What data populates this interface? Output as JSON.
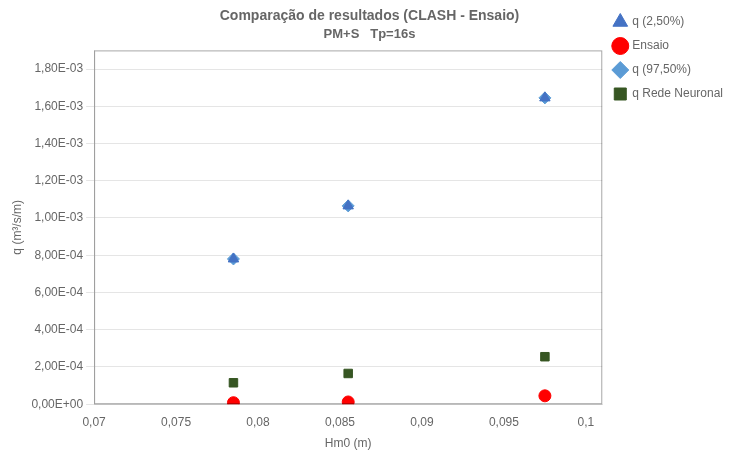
{
  "chart_data": {
    "type": "scatter",
    "title": "Comparação de resultados (CLASH - Ensaio)",
    "subtitle": "PM+S   Tp=16s",
    "x_label": "Hm0 (m)",
    "y_label": "q (m³/s/m)",
    "xlim": [
      0.07,
      0.101
    ],
    "ylim": [
      0.0,
      0.0019
    ],
    "xticks": [
      {
        "value": 0.07,
        "label": "0,07"
      },
      {
        "value": 0.075,
        "label": "0,075"
      },
      {
        "value": 0.08,
        "label": "0,08"
      },
      {
        "value": 0.085,
        "label": "0,085"
      },
      {
        "value": 0.09,
        "label": "0,09"
      },
      {
        "value": 0.095,
        "label": "0,095"
      },
      {
        "value": 0.1,
        "label": "0,1"
      }
    ],
    "yticks": [
      {
        "value": 0.0,
        "label": "0,00E+00"
      },
      {
        "value": 0.0002,
        "label": "2,00E-04"
      },
      {
        "value": 0.0004,
        "label": "4,00E-04"
      },
      {
        "value": 0.0006,
        "label": "6,00E-04"
      },
      {
        "value": 0.0008,
        "label": "8,00E-04"
      },
      {
        "value": 0.001,
        "label": "1,00E-03"
      },
      {
        "value": 0.0012,
        "label": "1,20E-03"
      },
      {
        "value": 0.0014,
        "label": "1,40E-03"
      },
      {
        "value": 0.0016,
        "label": "1,60E-03"
      },
      {
        "value": 0.0018,
        "label": "1,80E-03"
      }
    ],
    "grid": "y",
    "legend": "right",
    "series": [
      {
        "name": "q (2,50%)",
        "color": "#4472C4",
        "marker": "triangle",
        "x": [
          0.0785,
          0.0855,
          0.0975
        ],
        "values": [
          0.00078,
          0.001065,
          0.001645
        ]
      },
      {
        "name": "Ensaio",
        "color": "#FF0000",
        "marker": "circle",
        "x": [
          0.0785,
          0.0855,
          0.0975
        ],
        "values": [
          8e-06,
          1.2e-05,
          4.5e-05
        ]
      },
      {
        "name": "q (97,50%)",
        "color": "#5B9BD5",
        "marker": "diamond",
        "x": [
          0.0785,
          0.0855,
          0.0975
        ],
        "values": [
          0.00078,
          0.001065,
          0.001645
        ]
      },
      {
        "name": "q Rede Neuronal",
        "color": "#375623",
        "marker": "square",
        "x": [
          0.0785,
          0.0855,
          0.0975
        ],
        "values": [
          0.000115,
          0.000165,
          0.000255
        ]
      }
    ]
  }
}
